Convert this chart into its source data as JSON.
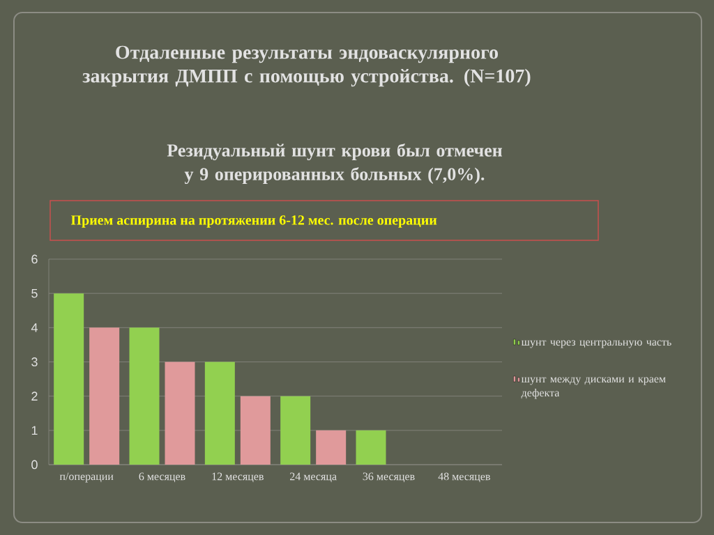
{
  "chart_data": {
    "type": "bar",
    "title": "Отдаленные результаты эндоваскулярного закрытия ДМПП с помощью устройства. (N=107)",
    "subtitle": "Резидуальный шунт крови был отмечен у 9 оперированных больных (7,0%).",
    "annotations": [
      "Прием аспирина на протяжении 6-12 мес. после операции"
    ],
    "categories": [
      "п/операции",
      "6 месяцев",
      "12 месяцев",
      "24 месяца",
      "36 месяцев",
      "48 месяцев"
    ],
    "series": [
      {
        "name": "шунт через центральную часть",
        "color": "#92d050",
        "values": [
          5,
          4,
          3,
          2,
          1,
          0
        ]
      },
      {
        "name": "шунт между дисками и краем дефекта",
        "color": "#e09a9b",
        "values": [
          4,
          3,
          2,
          1,
          0,
          0
        ]
      }
    ],
    "ylim": [
      0,
      6
    ],
    "yticks": [
      0,
      1,
      2,
      3,
      4,
      5,
      6
    ],
    "grid": "y",
    "legend": "right"
  }
}
